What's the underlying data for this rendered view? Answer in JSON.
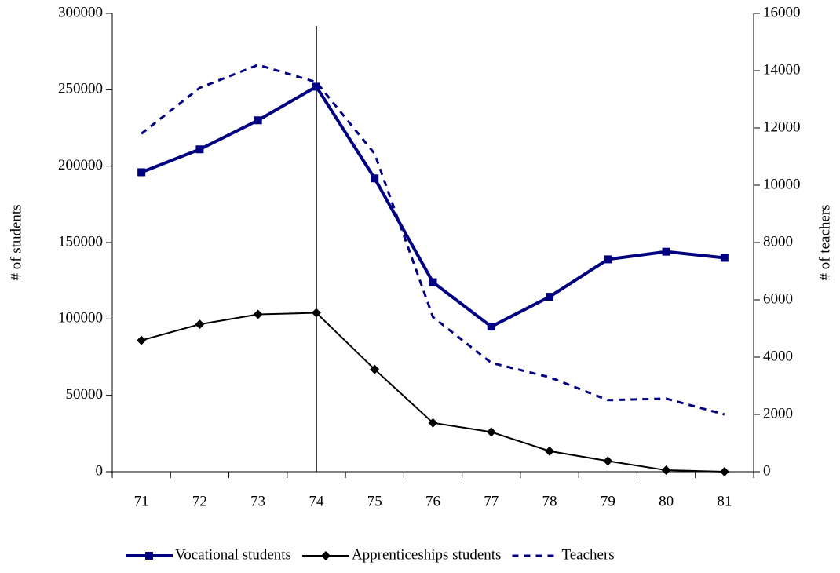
{
  "chart_data": {
    "type": "line",
    "categories": [
      "71",
      "72",
      "73",
      "74",
      "75",
      "76",
      "77",
      "78",
      "79",
      "80",
      "81"
    ],
    "y_label": "# of students",
    "y2_label": "# of teachers",
    "ylim": [
      0,
      300000
    ],
    "yticks": [
      0,
      50000,
      100000,
      150000,
      200000,
      250000,
      300000
    ],
    "y2lim": [
      0,
      16000
    ],
    "y2ticks": [
      0,
      2000,
      4000,
      6000,
      8000,
      10000,
      12000,
      14000,
      16000
    ],
    "legend": "bottom",
    "series": [
      {
        "name": "Vocational students",
        "color": "#000080",
        "marker": "square",
        "line_style": "solid",
        "values": [
          196000,
          211000,
          230000,
          252000,
          192000,
          124000,
          95000,
          114500,
          139000,
          144000,
          140000
        ]
      },
      {
        "name": "Apprenticeships students",
        "color": "#000000",
        "marker": "diamond",
        "line_style": "solid",
        "values": [
          86000,
          96500,
          103000,
          104000,
          67000,
          32000,
          26000,
          13500,
          7000,
          1000,
          0
        ]
      },
      {
        "name": "Teachers",
        "color": "#000080",
        "marker": "none",
        "line_style": "dashed",
        "axis": "y2",
        "values": [
          11800,
          13400,
          14200,
          13600,
          11100,
          5400,
          3800,
          3300,
          2500,
          2550,
          2000
        ]
      }
    ]
  }
}
